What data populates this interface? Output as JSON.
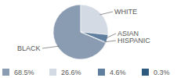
{
  "chart_data": {
    "type": "pie",
    "categories": [
      "BLACK",
      "WHITE",
      "ASIAN",
      "HISPANIC"
    ],
    "values": [
      68.5,
      26.6,
      4.6,
      0.3
    ],
    "value_labels": [
      "68.5%",
      "26.6%",
      "4.6%",
      "0.3%"
    ],
    "colors": [
      "#8a9cb1",
      "#d3dae3",
      "#607f9e",
      "#2e5a80"
    ],
    "legend": "bottom"
  }
}
